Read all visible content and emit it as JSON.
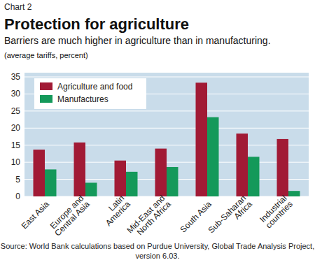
{
  "chart_data": {
    "type": "bar",
    "chart_label": "Chart 2",
    "title": "Protection for agriculture",
    "subtitle": "Barriers are much higher in agriculture than in manufacturing.",
    "y_label": "(average tariffs, percent)",
    "source": "Source: World Bank calculations based on Purdue University, Global Trade Analysis Project,\nversion 6.03.",
    "categories": [
      "East Asia",
      "Europe and\nCentral Asia",
      "Latin\nAmerica",
      "Mid-East and\nNorth Africa",
      "South Asia",
      "Sub-Saharan\nAfrica",
      "Industrial\ncountries"
    ],
    "series": [
      {
        "name": "Agriculture and food",
        "color": "#a11a35",
        "values": [
          13.7,
          15.8,
          10.5,
          14.0,
          33.3,
          18.4,
          16.8
        ]
      },
      {
        "name": "Manufactures",
        "color": "#14995a",
        "values": [
          7.9,
          4.0,
          7.2,
          8.6,
          23.2,
          11.6,
          1.6
        ]
      }
    ],
    "ylim": [
      0,
      35
    ],
    "yticks": [
      0,
      5,
      10,
      15,
      20,
      25,
      30,
      35
    ],
    "grid": true,
    "legend": "upper left"
  }
}
